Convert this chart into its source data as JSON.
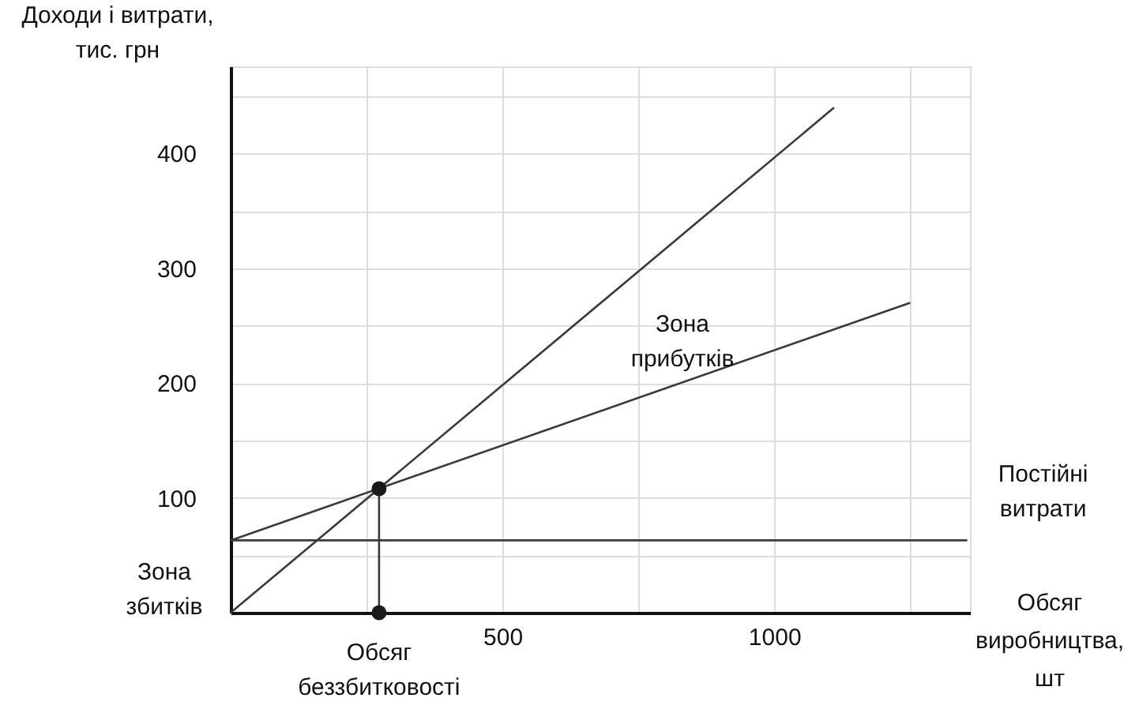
{
  "chart_data": {
    "type": "line",
    "xlabel": "Обсяг виробництва, шт",
    "ylabel": "Доходи і витрати, тис. грн",
    "xlim": [
      0,
      1360
    ],
    "ylim": [
      0,
      476
    ],
    "xticks": [
      {
        "value": 250,
        "label": null
      },
      500,
      {
        "value": 750,
        "label": null
      },
      1000,
      {
        "value": 1250,
        "label": null
      }
    ],
    "yticks": [
      {
        "value": 50,
        "label": null
      },
      100,
      {
        "value": 150,
        "label": null
      },
      200,
      {
        "value": 250,
        "label": null
      },
      300,
      {
        "value": 350,
        "label": null
      },
      400,
      {
        "value": 450,
        "label": null
      }
    ],
    "grid": true,
    "series": [
      {
        "x": [
          0,
          1110
        ],
        "values": [
          0,
          440
        ],
        "color": "#3a3a3a"
      },
      {
        "x": [
          0,
          1250
        ],
        "values": [
          63,
          270
        ],
        "color": "#3a3a3a"
      },
      {
        "name": "Постійні витрати",
        "x": [
          0,
          1355
        ],
        "values": [
          63,
          63
        ],
        "color": "#3a3a3a"
      },
      {
        "x": [
          273,
          273
        ],
        "values": [
          0,
          108
        ],
        "color": "#3a3a3a"
      },
      {
        "type": "scatter",
        "x": [
          273,
          273
        ],
        "values": [
          108,
          0
        ],
        "color": "#1a1a1a"
      }
    ],
    "annotations": [
      "Зона прибутків",
      "Зона збитків",
      {
        "text": "Обсяг беззбитковості",
        "x": 273,
        "y": 0
      }
    ]
  }
}
